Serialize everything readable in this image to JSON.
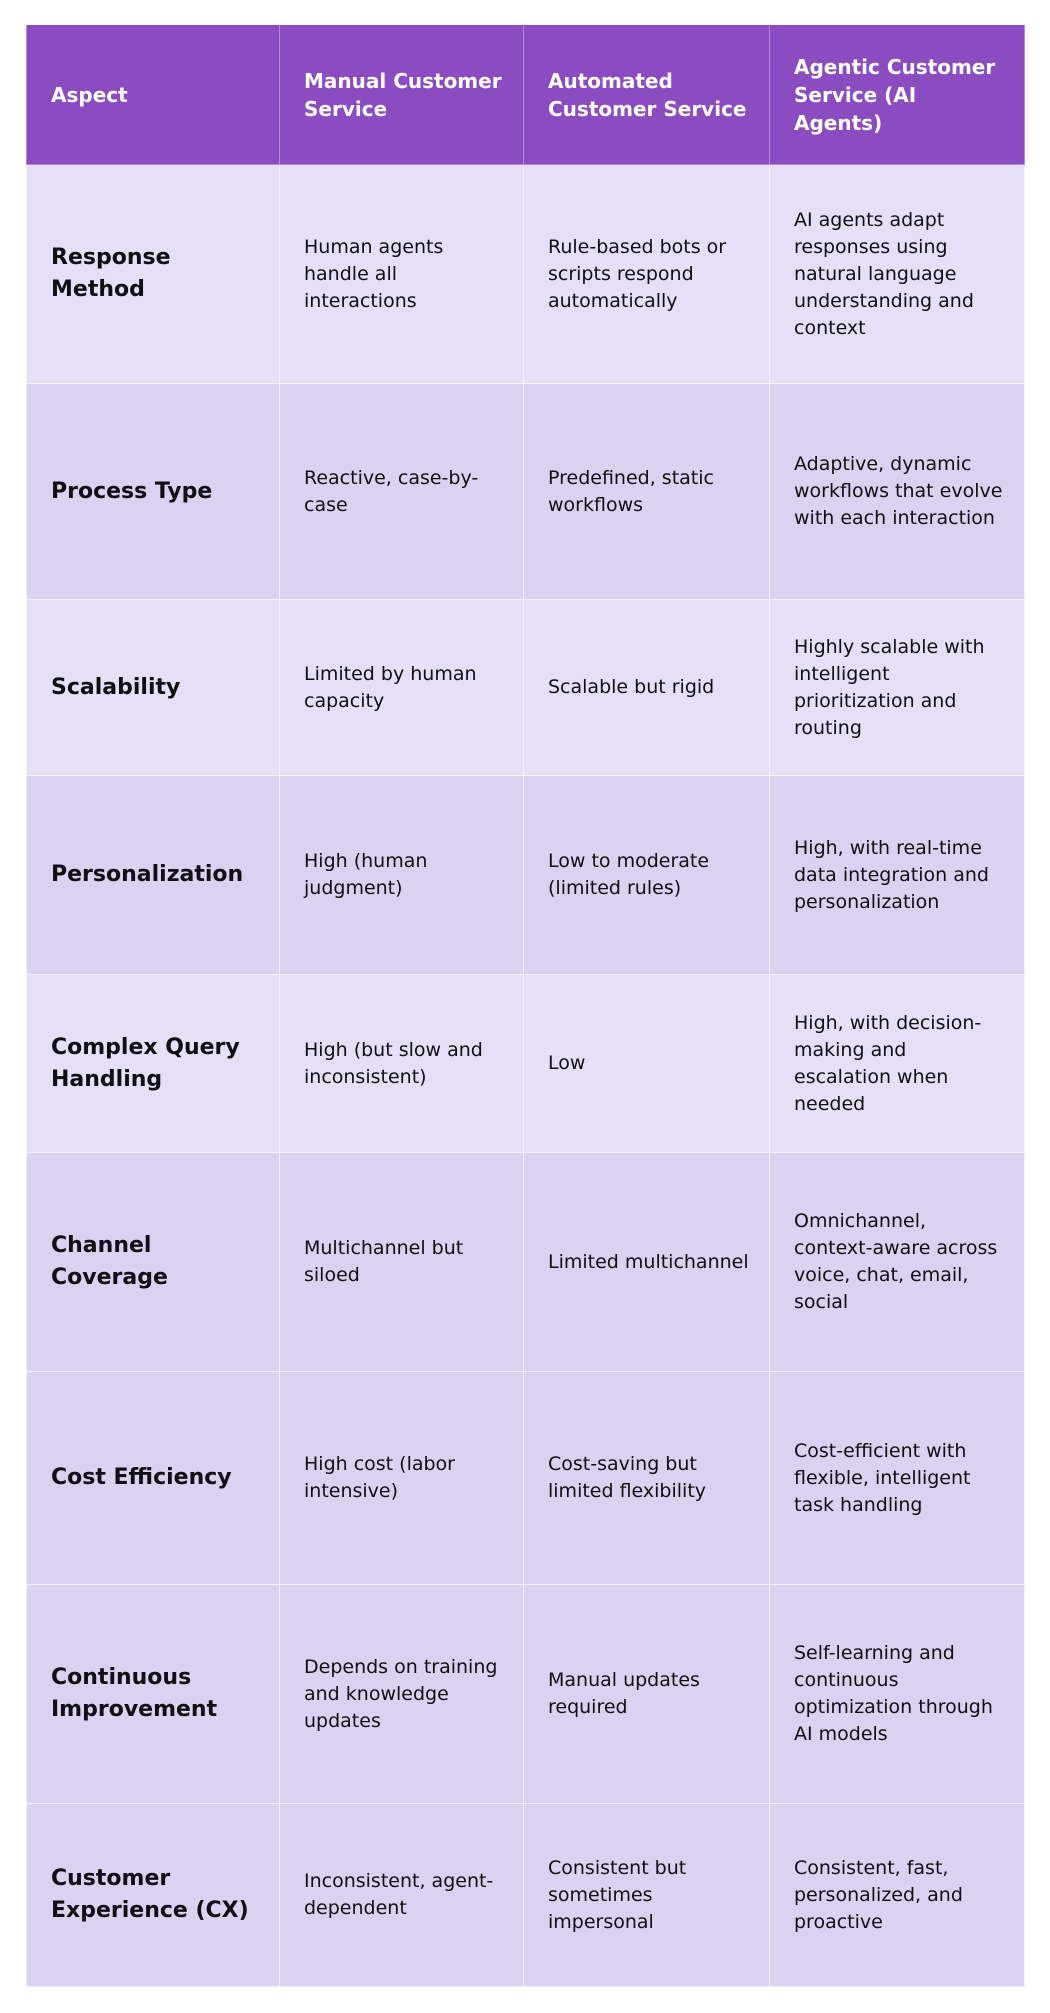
{
  "table": {
    "headers": [
      "Aspect",
      "Manual Customer Service",
      "Automated Customer Service",
      "Agentic Customer Service (AI Agents)"
    ],
    "rows": [
      [
        "Response Method",
        "Human agents handle all interactions",
        "Rule-based bots or scripts respond automatically",
        "AI agents adapt responses using natural language understanding and context"
      ],
      [
        "Process Type",
        "Reactive, case-by-case",
        "Predefined, static workflows",
        "Adaptive, dynamic workflows that evolve with each interaction"
      ],
      [
        "Scalability",
        "Limited by human capacity",
        "Scalable but rigid",
        "Highly scalable with intelligent prioritization and routing"
      ],
      [
        "Personalization",
        "High (human judgment)",
        "Low to moderate (limited rules)",
        "High, with real-time data integration and personalization"
      ],
      [
        "Complex Query Handling",
        "High (but slow and inconsistent)",
        "Low",
        "High, with decision-making and escalation when needed"
      ],
      [
        "Channel Coverage",
        "Multichannel but siloed",
        "Limited multichannel",
        "Omnichannel, context-aware across voice, chat, email, social"
      ],
      [
        "Cost Efficiency",
        "High cost (labor intensive)",
        "Cost-saving but limited flexibility",
        "Cost-efficient with flexible, intelligent task handling"
      ],
      [
        "Continuous Improvement",
        "Depends on training and knowledge updates",
        "Manual updates required",
        "Self-learning and continuous optimization through AI models"
      ],
      [
        "Customer Experience (CX)",
        "Inconsistent, agent-dependent",
        "Consistent but sometimes impersonal",
        "Consistent, fast, personalized, and proactive"
      ]
    ]
  },
  "colors": {
    "header_bg": "#8b4bc1",
    "row_light": "#e6dff8",
    "row_dark": "#dbd1f0"
  }
}
